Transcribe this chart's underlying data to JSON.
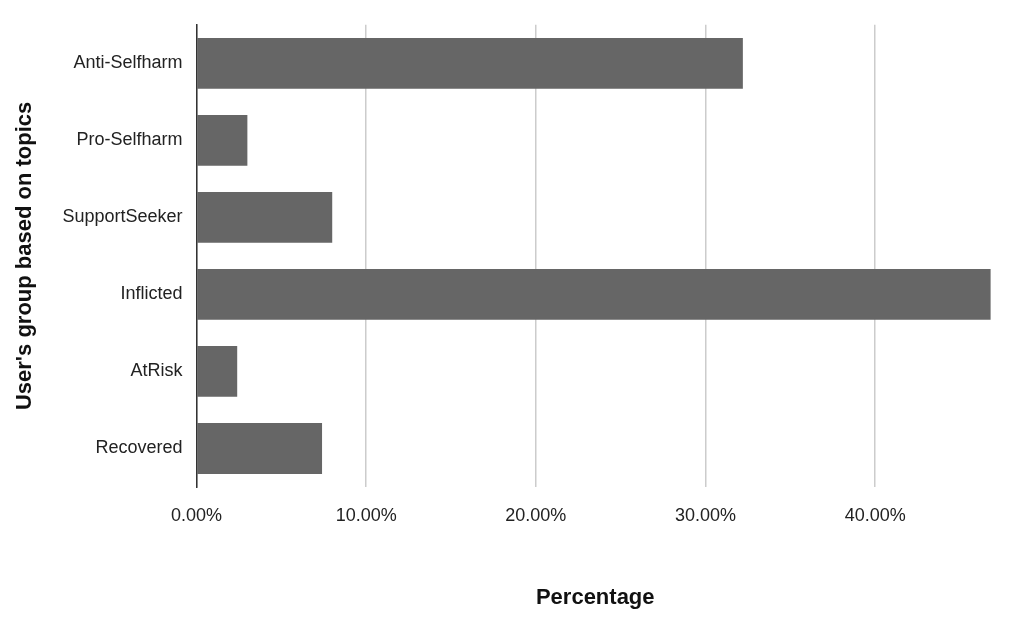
{
  "chart_data": {
    "type": "bar",
    "orientation": "horizontal",
    "xlabel": "Percentage",
    "ylabel": "User's group based on topics",
    "categories": [
      "Anti-Selfharm",
      "Pro-Selfharm",
      "SupportSeeker",
      "Inflicted",
      "AtRisk",
      "Recovered"
    ],
    "values": [
      32.2,
      3.0,
      8.0,
      46.8,
      2.4,
      7.4
    ],
    "color": "#666666",
    "xlim": [
      0,
      47
    ],
    "xticks": [
      {
        "value": 0,
        "label": "0.00%"
      },
      {
        "value": 10,
        "label": "10.00%"
      },
      {
        "value": 20,
        "label": "20.00%"
      },
      {
        "value": 30,
        "label": "30.00%"
      },
      {
        "value": 40,
        "label": "40.00%"
      }
    ],
    "grid": "x",
    "legend": false
  }
}
